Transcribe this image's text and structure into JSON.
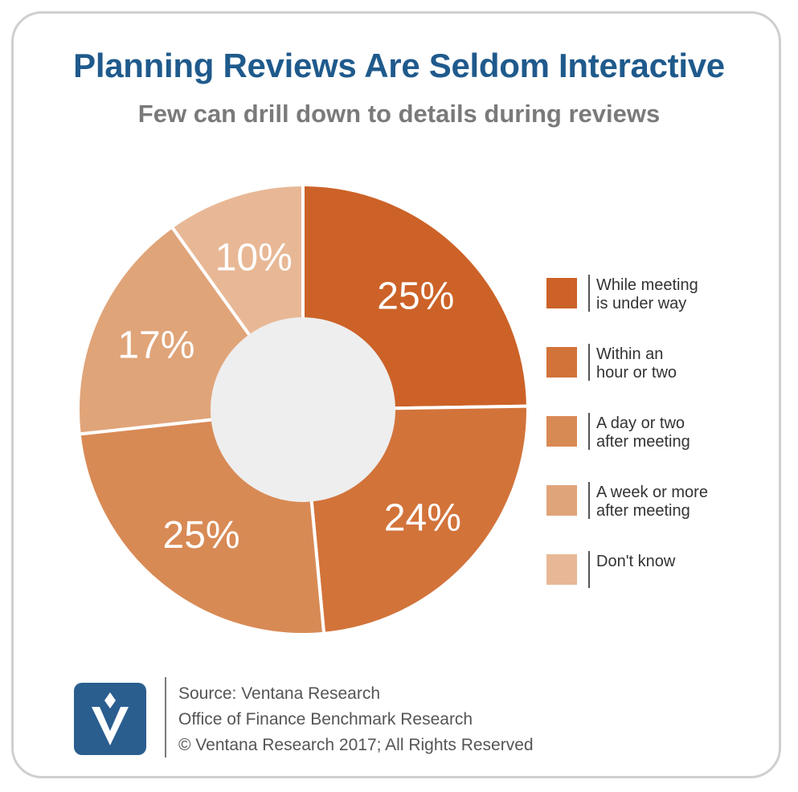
{
  "header": {
    "title": "Planning Reviews Are Seldom Interactive",
    "subtitle": "Few can drill down to details during reviews"
  },
  "chart_data": {
    "type": "pie",
    "title": "Planning Reviews Are Seldom Interactive",
    "subtitle": "Few can drill down to details during reviews",
    "donut": true,
    "legend_position": "right",
    "slices": [
      {
        "label": "While meeting\nis under way",
        "value": 25,
        "display": "25%",
        "color": "#cc6228"
      },
      {
        "label": "Within an\nhour or two",
        "value": 24,
        "display": "24%",
        "color": "#d2733a"
      },
      {
        "label": "A day or two\nafter meeting",
        "value": 25,
        "display": "25%",
        "color": "#d88a55"
      },
      {
        "label": "A week or more\nafter meeting",
        "value": 17,
        "display": "17%",
        "color": "#e0a479"
      },
      {
        "label": "Don't know",
        "value": 10,
        "display": "10%",
        "color": "#e8b896"
      }
    ]
  },
  "footer": {
    "source": "Source: Ventana Research",
    "study": "Office of Finance Benchmark Research",
    "copyright": "© Ventana Research 2017; All Rights Reserved",
    "logo_icon": "ventana-v-logo-icon"
  }
}
